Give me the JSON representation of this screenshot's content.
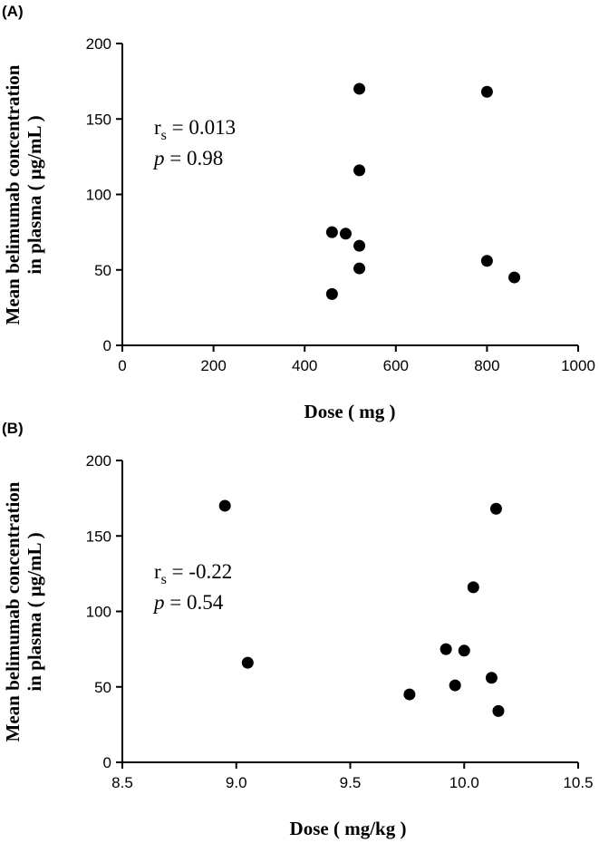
{
  "chart_data": [
    {
      "type": "scatter",
      "panel_label": "(A)",
      "xlabel": "Dose ( mg )",
      "ylabel_line1": "Mean belimumab concentration",
      "ylabel_line2": "in plasma ( μg/mL )",
      "xlim": [
        0,
        1000
      ],
      "ylim": [
        0,
        200
      ],
      "xticks": [
        0,
        200,
        400,
        600,
        800,
        1000
      ],
      "yticks": [
        0,
        50,
        100,
        150,
        200
      ],
      "xtick_labels": [
        "0",
        "200",
        "400",
        "600",
        "800",
        "1000"
      ],
      "ytick_labels": [
        "0",
        "50",
        "100",
        "150",
        "200"
      ],
      "stat_rs_label": "r",
      "stat_rs_sub": "s",
      "stat_rs_value": " = 0.013",
      "stat_p_label": "p",
      "stat_p_value": " = 0.98",
      "points": [
        {
          "x": 520,
          "y": 170
        },
        {
          "x": 800,
          "y": 168
        },
        {
          "x": 520,
          "y": 116
        },
        {
          "x": 460,
          "y": 75
        },
        {
          "x": 490,
          "y": 74
        },
        {
          "x": 520,
          "y": 66
        },
        {
          "x": 800,
          "y": 56
        },
        {
          "x": 520,
          "y": 51
        },
        {
          "x": 860,
          "y": 45
        },
        {
          "x": 460,
          "y": 34
        }
      ]
    },
    {
      "type": "scatter",
      "panel_label": "(B)",
      "xlabel": "Dose ( mg/kg )",
      "ylabel_line1": "Mean belimumab concentration",
      "ylabel_line2": "in plasma ( μg/mL )",
      "xlim": [
        8.5,
        10.5
      ],
      "ylim": [
        0,
        200
      ],
      "xticks": [
        8.5,
        9.0,
        9.5,
        10.0,
        10.5
      ],
      "yticks": [
        0,
        50,
        100,
        150,
        200
      ],
      "xtick_labels": [
        "8.5",
        "9.0",
        "9.5",
        "10.0",
        "10.5"
      ],
      "ytick_labels": [
        "0",
        "50",
        "100",
        "150",
        "200"
      ],
      "stat_rs_label": "r",
      "stat_rs_sub": "s",
      "stat_rs_value": " = -0.22",
      "stat_p_label": "p",
      "stat_p_value": " = 0.54",
      "points": [
        {
          "x": 8.95,
          "y": 170
        },
        {
          "x": 10.14,
          "y": 168
        },
        {
          "x": 10.04,
          "y": 116
        },
        {
          "x": 9.92,
          "y": 75
        },
        {
          "x": 10.0,
          "y": 74
        },
        {
          "x": 9.05,
          "y": 66
        },
        {
          "x": 10.12,
          "y": 56
        },
        {
          "x": 9.96,
          "y": 51
        },
        {
          "x": 9.76,
          "y": 45
        },
        {
          "x": 10.15,
          "y": 34
        }
      ]
    }
  ]
}
